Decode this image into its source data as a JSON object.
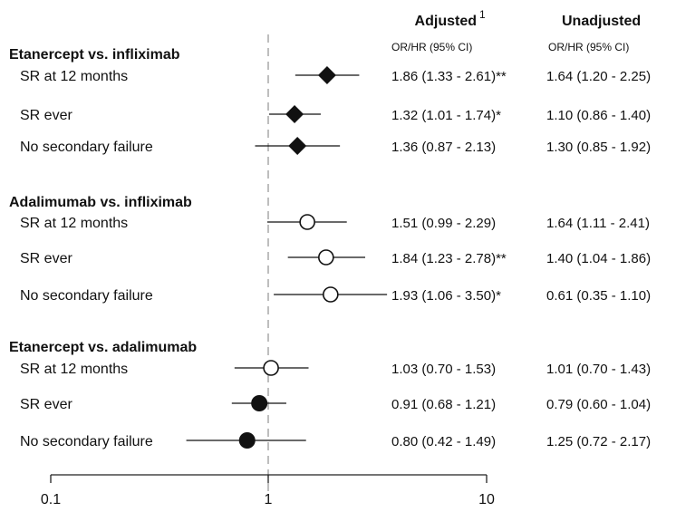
{
  "chart_data": {
    "type": "scatter",
    "subtype": "forest-plot",
    "x_scale": "log",
    "xlim": [
      0.1,
      10
    ],
    "x_ticks": [
      "0.1",
      "1",
      "10"
    ],
    "reference_line": 1,
    "headers": {
      "adjusted": "Adjusted",
      "adjusted_superscript": "1",
      "unadjusted": "Unadjusted",
      "adjusted_sub": "OR/HR (95% CI)",
      "unadjusted_sub": "OR/HR (95% CI)"
    },
    "groups": [
      {
        "title": "Etanercept vs. infliximab",
        "marker": "diamond",
        "rows": [
          {
            "label": "SR at 12 months",
            "estimate": 1.86,
            "lower": 1.33,
            "upper": 2.61,
            "adjusted": "1.86 (1.33 - 2.61)**",
            "unadjusted": "1.64 (1.20 - 2.25)"
          },
          {
            "label": "SR ever",
            "estimate": 1.32,
            "lower": 1.01,
            "upper": 1.74,
            "adjusted": "1.32 (1.01 - 1.74)*",
            "unadjusted": "1.10 (0.86 - 1.40)"
          },
          {
            "label": "No secondary failure",
            "estimate": 1.36,
            "lower": 0.87,
            "upper": 2.13,
            "adjusted": "1.36 (0.87 - 2.13)",
            "unadjusted": "1.30 (0.85 - 1.92)"
          }
        ]
      },
      {
        "title": "Adalimumab vs. infliximab",
        "marker": "open-circle",
        "rows": [
          {
            "label": "SR at 12 months",
            "estimate": 1.51,
            "lower": 0.99,
            "upper": 2.29,
            "adjusted": "1.51 (0.99 - 2.29)",
            "unadjusted": "1.64 (1.11 - 2.41)"
          },
          {
            "label": "SR ever",
            "estimate": 1.84,
            "lower": 1.23,
            "upper": 2.78,
            "adjusted": "1.84 (1.23 - 2.78)**",
            "unadjusted": "1.40 (1.04 - 1.86)"
          },
          {
            "label": "No secondary failure",
            "estimate": 1.93,
            "lower": 1.06,
            "upper": 3.5,
            "adjusted": "1.93 (1.06 - 3.50)*",
            "unadjusted": "0.61 (0.35 - 1.10)"
          }
        ]
      },
      {
        "title": "Etanercept vs. adalimumab",
        "marker": "mixed",
        "rows": [
          {
            "label": "SR at 12 months",
            "estimate": 1.03,
            "lower": 0.7,
            "upper": 1.53,
            "marker": "open-circle",
            "adjusted": "1.03 (0.70 - 1.53)",
            "unadjusted": "1.01 (0.70 - 1.43)"
          },
          {
            "label": "SR ever",
            "estimate": 0.91,
            "lower": 0.68,
            "upper": 1.21,
            "marker": "filled-circle",
            "adjusted": "0.91 (0.68 - 1.21)",
            "unadjusted": "0.79 (0.60 - 1.04)"
          },
          {
            "label": "No secondary failure",
            "estimate": 0.8,
            "lower": 0.42,
            "upper": 1.49,
            "marker": "filled-circle",
            "adjusted": "0.80 (0.42 - 1.49)",
            "unadjusted": "1.25 (0.72 - 2.17)"
          }
        ]
      }
    ],
    "colors": {
      "marker": "#111111",
      "reference_line": "#9a9a9a",
      "axis": "#222222"
    }
  }
}
